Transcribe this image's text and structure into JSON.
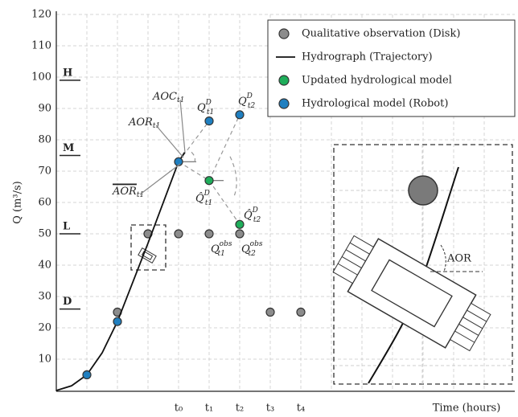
{
  "chart_data": {
    "type": "scatter",
    "ylabel": "Q (m³/s)",
    "xlabel": "Time (hours)",
    "xlim": [
      0,
      15
    ],
    "ylim": [
      0,
      120
    ],
    "yticks": [
      10,
      20,
      30,
      40,
      50,
      60,
      70,
      80,
      90,
      100,
      110,
      120
    ],
    "xticks": [
      {
        "value": 1,
        "label": null
      },
      {
        "value": 2,
        "label": null
      },
      {
        "value": 3,
        "label": null
      },
      {
        "value": 4,
        "label": "t₀"
      },
      {
        "value": 5,
        "label": "t₁"
      },
      {
        "value": 6,
        "label": "t₂"
      },
      {
        "value": 7,
        "label": "t₃"
      },
      {
        "value": 8,
        "label": "t₄"
      },
      {
        "value": 9,
        "label": null
      },
      {
        "value": 10,
        "label": null
      },
      {
        "value": 11,
        "label": null
      },
      {
        "value": 12,
        "label": null
      },
      {
        "value": 13,
        "label": null
      },
      {
        "value": 14,
        "label": null
      }
    ],
    "grid": true,
    "legend": "upper right",
    "levels": [
      {
        "label": "H",
        "value": 99
      },
      {
        "label": "M",
        "value": 75
      },
      {
        "label": "L",
        "value": 50
      },
      {
        "label": "D",
        "value": 26
      }
    ],
    "series": [
      {
        "name": "Qualitative observation (Disk)",
        "type": "scatter",
        "color": "#8c8c8c",
        "x": [
          2,
          3,
          4,
          5,
          6,
          7,
          8
        ],
        "values": [
          25,
          50,
          50,
          50,
          50,
          25,
          25
        ]
      },
      {
        "name": "Hydrograph (Trajectory)",
        "type": "line",
        "color": "#111111",
        "x": [
          0,
          0.5,
          1,
          1.5,
          2,
          3,
          4,
          4.2
        ],
        "values": [
          0,
          1.5,
          5,
          12,
          22,
          47,
          73,
          76
        ]
      },
      {
        "name": "Updated hydrological model",
        "type": "scatter",
        "color": "#1fae5b",
        "x": [
          5,
          6
        ],
        "values": [
          67,
          53
        ]
      },
      {
        "name": "Hydrological model (Robot)",
        "type": "scatter",
        "color": "#1f7fc0",
        "x": [
          1,
          2,
          4,
          5,
          6
        ],
        "values": [
          5,
          22,
          73,
          86,
          88
        ]
      }
    ],
    "annotations": [
      {
        "base": "AOC",
        "sub": "t1"
      },
      {
        "base": "AOR",
        "sub": "t1"
      },
      {
        "base": "AOR",
        "sub": "t1",
        "overline": true
      },
      {
        "base": "Q",
        "sup": "D",
        "sub": "t1"
      },
      {
        "base": "Q",
        "sup": "D",
        "sub": "t2"
      },
      {
        "base": "Q̂",
        "sup": "D",
        "sub": "t1"
      },
      {
        "base": "Q̂",
        "sup": "D",
        "sub": "t2"
      },
      {
        "base": "Q",
        "sup": "obs",
        "sub": "t1"
      },
      {
        "base": "Q",
        "sup": "obs",
        "sub": "t2"
      }
    ],
    "inset_label": "AOR"
  }
}
